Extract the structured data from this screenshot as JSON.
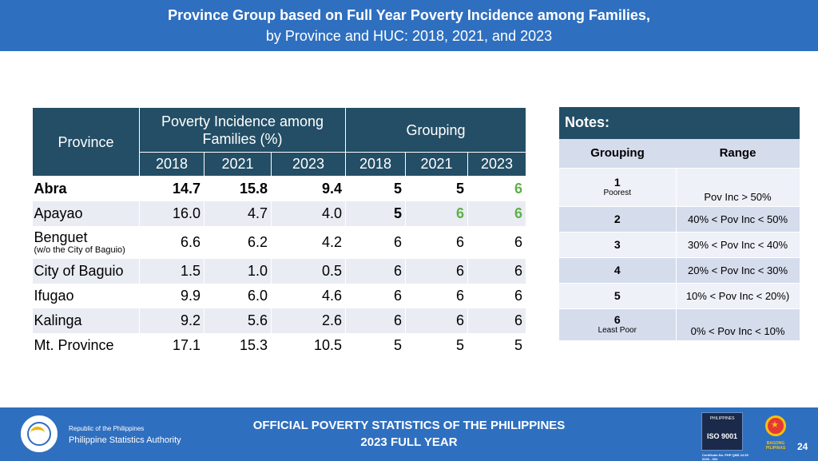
{
  "header": {
    "title_line1": "Province Group based on Full Year Poverty Incidence among Families,",
    "title_line2": "by Province and HUC: 2018, 2021, and 2023"
  },
  "table": {
    "col_province": "Province",
    "col_incidence": "Poverty Incidence among Families (%)",
    "col_grouping": "Grouping",
    "years": [
      "2018",
      "2021",
      "2023"
    ],
    "rows": [
      {
        "province": "Abra",
        "sub": "",
        "inc": [
          "14.7",
          "15.8",
          "9.4"
        ],
        "grp": [
          "5",
          "5",
          "6"
        ]
      },
      {
        "province": "Apayao",
        "sub": "",
        "inc": [
          "16.0",
          "4.7",
          "4.0"
        ],
        "grp": [
          "5",
          "6",
          "6"
        ]
      },
      {
        "province": "Benguet",
        "sub": "(w/o the City of Baguio)",
        "inc": [
          "6.6",
          "6.2",
          "4.2"
        ],
        "grp": [
          "6",
          "6",
          "6"
        ]
      },
      {
        "province": "City of Baguio",
        "sub": "",
        "inc": [
          "1.5",
          "1.0",
          "0.5"
        ],
        "grp": [
          "6",
          "6",
          "6"
        ]
      },
      {
        "province": "Ifugao",
        "sub": "",
        "inc": [
          "9.9",
          "6.0",
          "4.6"
        ],
        "grp": [
          "6",
          "6",
          "6"
        ]
      },
      {
        "province": "Kalinga",
        "sub": "",
        "inc": [
          "9.2",
          "5.6",
          "2.6"
        ],
        "grp": [
          "6",
          "6",
          "6"
        ]
      },
      {
        "province": "Mt. Province",
        "sub": "",
        "inc": [
          "17.1",
          "15.3",
          "10.5"
        ],
        "grp": [
          "5",
          "5",
          "5"
        ]
      }
    ]
  },
  "notes": {
    "title": "Notes:",
    "col_grouping": "Grouping",
    "col_range": "Range",
    "rows": [
      {
        "group": "1",
        "sub": "Poorest",
        "range": "Pov Inc > 50%"
      },
      {
        "group": "2",
        "sub": "",
        "range": "40% < Pov Inc < 50%"
      },
      {
        "group": "3",
        "sub": "",
        "range": "30% < Pov Inc < 40%"
      },
      {
        "group": "4",
        "sub": "",
        "range": "20% < Pov Inc < 30%"
      },
      {
        "group": "5",
        "sub": "",
        "range": "10% < Pov Inc < 20%)"
      },
      {
        "group": "6",
        "sub": "Least Poor",
        "range": "0% < Pov Inc < 10%"
      }
    ]
  },
  "footer": {
    "org_line1": "Republic of the Philippines",
    "org_line2": "Philippine Statistics Authority",
    "center_line1": "OFFICIAL POVERTY STATISTICS OF THE PHILIPPINES",
    "center_line2": "2023 FULL YEAR",
    "iso_top": "PHILIPPINES",
    "iso_label": "ISO 9001",
    "iso_cert": "Certificate No. PHP QMS 24 05 0203 - 004",
    "bagong_pilipinas": "BAGONG PILIPINAS",
    "page_number": "24"
  },
  "colors": {
    "banner_blue": "#2f6fbf",
    "table_header": "#234e66",
    "highlight_green": "#5fb04a",
    "row_stripe": "#e9ecf3",
    "notes_stripe": "#d5dcec"
  }
}
